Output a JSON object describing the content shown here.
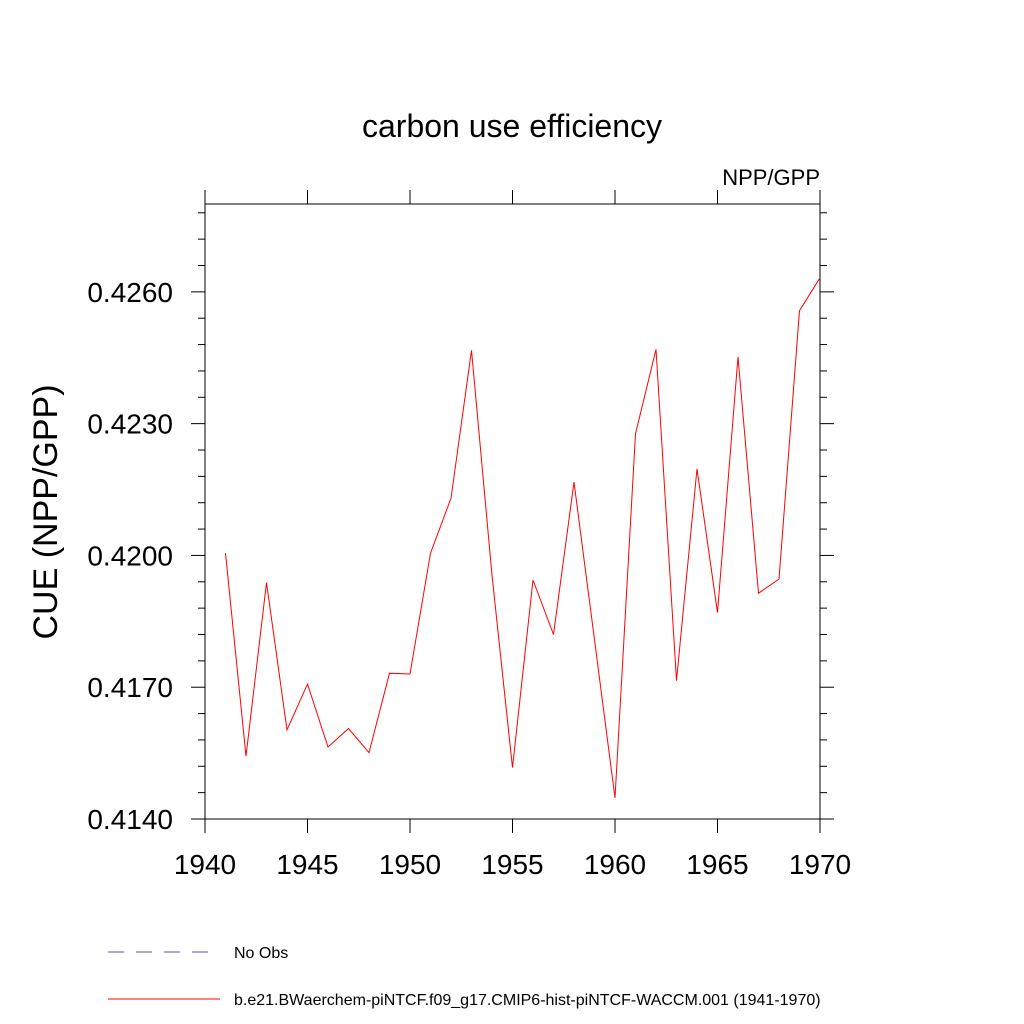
{
  "chart_data": {
    "type": "line",
    "title": "carbon use efficiency",
    "subtitle": "NPP/GPP",
    "xlabel": "",
    "ylabel": "CUE  (NPP/GPP)",
    "xlim": [
      1940,
      1970
    ],
    "ylim": [
      0.414,
      0.428
    ],
    "x_ticks": [
      1940,
      1945,
      1950,
      1955,
      1960,
      1965,
      1970
    ],
    "x_tick_labels": [
      "1940",
      "1945",
      "1950",
      "1955",
      "1960",
      "1965",
      "1970"
    ],
    "y_ticks": [
      0.414,
      0.417,
      0.42,
      0.423,
      0.426
    ],
    "y_tick_labels": [
      "0.4140",
      "0.4170",
      "0.4200",
      "0.4230",
      "0.4260"
    ],
    "grid": false,
    "legend_position": "bottom",
    "series": [
      {
        "name": "No Obs",
        "color": "#5a4fb5",
        "dash": "dashed",
        "x": [],
        "y": []
      },
      {
        "name": "b.e21.BWaerchem-piNTCF.f09_g17.CMIP6-hist-piNTCF-WACCM.001 (1941-1970)",
        "color": "#ff0000",
        "dash": "solid",
        "x": [
          1941,
          1942,
          1943,
          1944,
          1945,
          1946,
          1947,
          1948,
          1949,
          1950,
          1951,
          1952,
          1953,
          1954,
          1955,
          1956,
          1957,
          1958,
          1959,
          1960,
          1961,
          1962,
          1963,
          1964,
          1965,
          1966,
          1967,
          1968,
          1969,
          1970
        ],
        "y": [
          0.42005,
          0.41543,
          0.41938,
          0.41603,
          0.41707,
          0.41564,
          0.41606,
          0.41551,
          0.41732,
          0.4173,
          0.42005,
          0.4213,
          0.42467,
          0.41955,
          0.41517,
          0.41944,
          0.4182,
          0.42167,
          0.41808,
          0.41448,
          0.42277,
          0.42469,
          0.41715,
          0.42197,
          0.4187,
          0.42452,
          0.41914,
          0.41946,
          0.42557,
          0.42632
        ]
      }
    ]
  }
}
